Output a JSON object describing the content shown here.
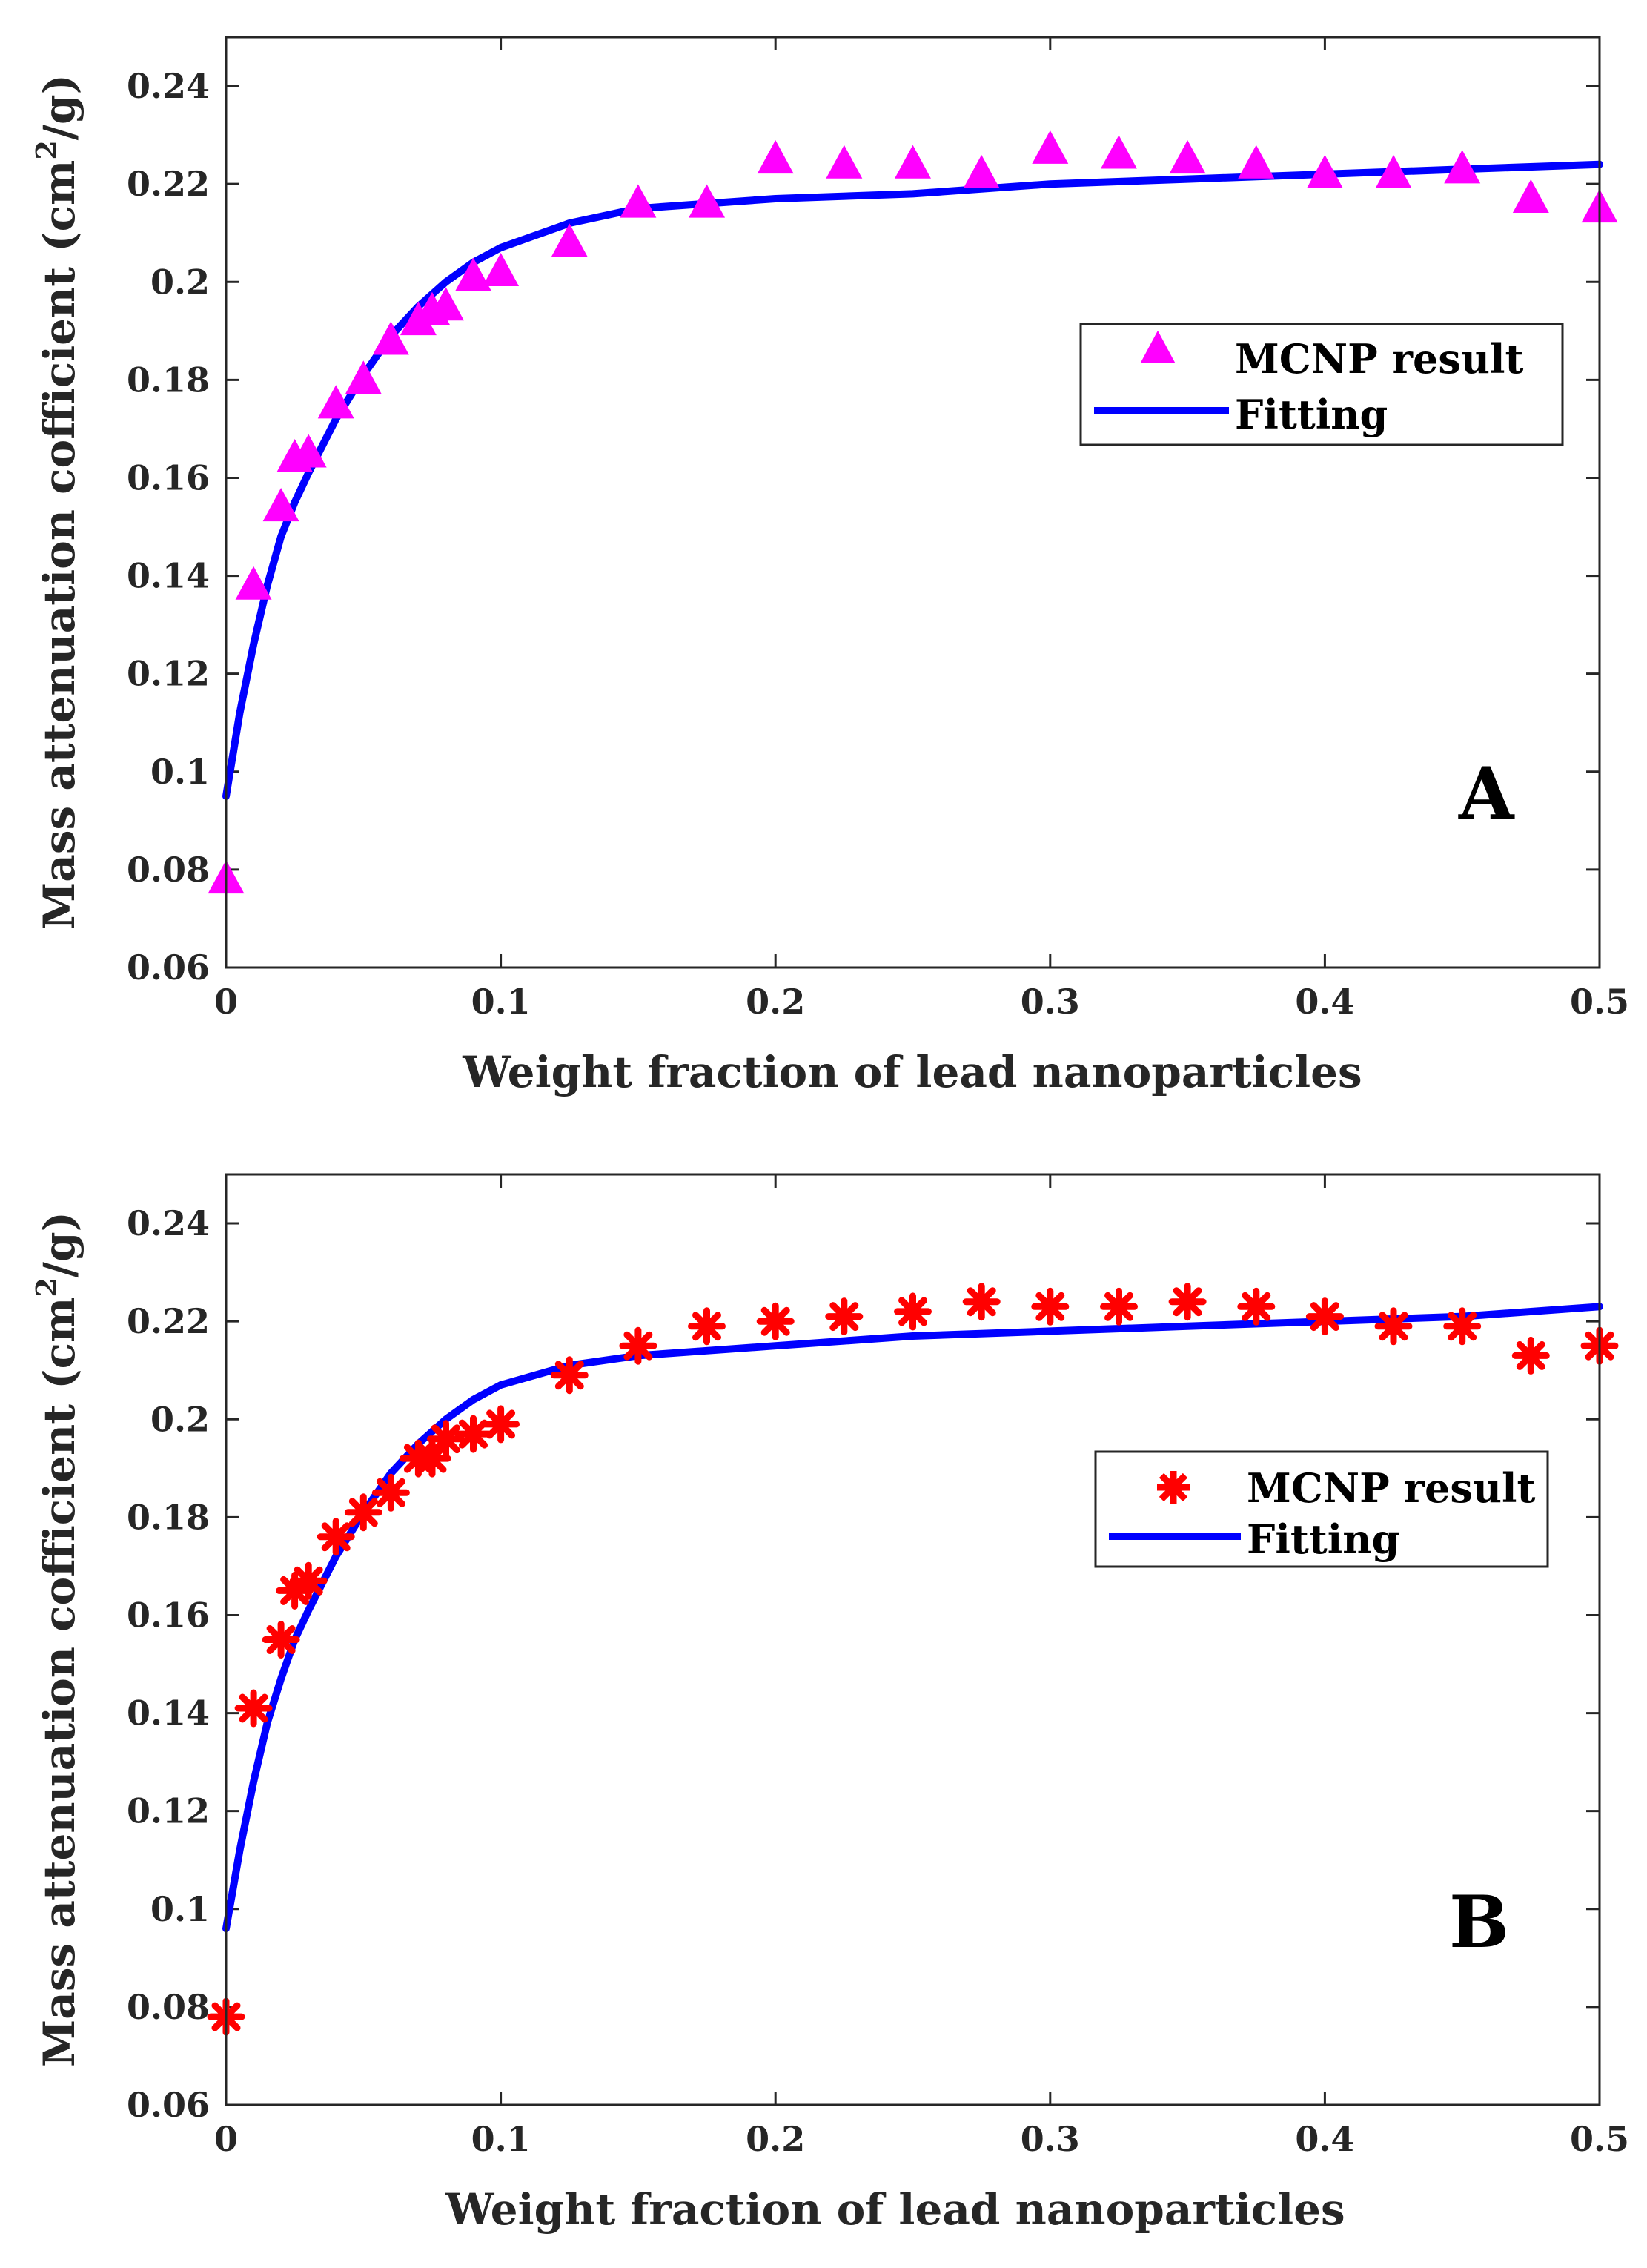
{
  "colors": {
    "fit": "#0000FF",
    "mcnp_a": "#FF00FF",
    "mcnp_b": "#FF0000",
    "axis": "#262626"
  },
  "chart_data": [
    {
      "type": "scatter",
      "panel_label": "A",
      "xlabel": "Weight fraction of lead nanoparticles",
      "ylabel_main": "Mass attenuation cofficient (cm",
      "ylabel_sup": "2",
      "ylabel_tail": "/g)",
      "xlim": [
        0,
        0.5
      ],
      "ylim": [
        0.06,
        0.25
      ],
      "x_ticks": [
        0,
        0.1,
        0.2,
        0.3,
        0.4,
        0.5
      ],
      "x_tick_labels": [
        "0",
        "0.1",
        "0.2",
        "0.3",
        "0.4",
        "0.5"
      ],
      "y_ticks": [
        0.06,
        0.08,
        0.1,
        0.12,
        0.14,
        0.16,
        0.18,
        0.2,
        0.22,
        0.24
      ],
      "y_tick_labels": [
        "0.06",
        "0.08",
        "0.1",
        "0.12",
        "0.14",
        "0.16",
        "0.18",
        "0.2",
        "0.22",
        "0.24"
      ],
      "legend_position": "upper-right",
      "series": [
        {
          "name": "MCNP result",
          "marker": "triangle",
          "x": [
            0,
            0.01,
            0.02,
            0.025,
            0.03,
            0.04,
            0.05,
            0.06,
            0.07,
            0.075,
            0.08,
            0.09,
            0.1,
            0.125,
            0.15,
            0.175,
            0.2,
            0.225,
            0.25,
            0.275,
            0.3,
            0.325,
            0.35,
            0.375,
            0.4,
            0.425,
            0.45,
            0.475,
            0.5
          ],
          "y": [
            0.078,
            0.138,
            0.154,
            0.164,
            0.165,
            0.175,
            0.18,
            0.188,
            0.192,
            0.194,
            0.195,
            0.201,
            0.202,
            0.208,
            0.216,
            0.216,
            0.225,
            0.224,
            0.224,
            0.222,
            0.227,
            0.226,
            0.225,
            0.224,
            0.222,
            0.222,
            0.223,
            0.217,
            0.215
          ]
        },
        {
          "name": "Fitting",
          "marker": "line",
          "x": [
            0,
            0.005,
            0.01,
            0.015,
            0.02,
            0.025,
            0.03,
            0.04,
            0.05,
            0.06,
            0.07,
            0.08,
            0.09,
            0.1,
            0.125,
            0.15,
            0.175,
            0.2,
            0.25,
            0.3,
            0.35,
            0.4,
            0.45,
            0.5
          ],
          "y": [
            0.095,
            0.112,
            0.126,
            0.138,
            0.148,
            0.155,
            0.161,
            0.172,
            0.181,
            0.189,
            0.195,
            0.2,
            0.204,
            0.207,
            0.212,
            0.215,
            0.216,
            0.217,
            0.218,
            0.22,
            0.221,
            0.222,
            0.223,
            0.224
          ]
        }
      ]
    },
    {
      "type": "scatter",
      "panel_label": "B",
      "xlabel": "Weight fraction of lead nanoparticles",
      "ylabel_main": "Mass attenuation cofficient (cm",
      "ylabel_sup": "2",
      "ylabel_tail": "/g)",
      "xlim": [
        0,
        0.5
      ],
      "ylim": [
        0.06,
        0.25
      ],
      "x_ticks": [
        0,
        0.1,
        0.2,
        0.3,
        0.4,
        0.5
      ],
      "x_tick_labels": [
        "0",
        "0.1",
        "0.2",
        "0.3",
        "0.4",
        "0.5"
      ],
      "y_ticks": [
        0.06,
        0.08,
        0.1,
        0.12,
        0.14,
        0.16,
        0.18,
        0.2,
        0.22,
        0.24
      ],
      "y_tick_labels": [
        "0.06",
        "0.08",
        "0.1",
        "0.12",
        "0.14",
        "0.16",
        "0.18",
        "0.2",
        "0.22",
        "0.24"
      ],
      "legend_position": "middle-right",
      "series": [
        {
          "name": "MCNP result",
          "marker": "asterisk",
          "x": [
            0,
            0.01,
            0.02,
            0.025,
            0.03,
            0.04,
            0.05,
            0.06,
            0.07,
            0.075,
            0.08,
            0.09,
            0.1,
            0.125,
            0.15,
            0.175,
            0.2,
            0.225,
            0.25,
            0.275,
            0.3,
            0.325,
            0.35,
            0.375,
            0.4,
            0.425,
            0.45,
            0.475,
            0.5
          ],
          "y": [
            0.078,
            0.141,
            0.155,
            0.165,
            0.167,
            0.176,
            0.181,
            0.185,
            0.192,
            0.192,
            0.196,
            0.197,
            0.199,
            0.209,
            0.215,
            0.219,
            0.22,
            0.221,
            0.222,
            0.224,
            0.223,
            0.223,
            0.224,
            0.223,
            0.221,
            0.219,
            0.219,
            0.213,
            0.215
          ]
        },
        {
          "name": "Fitting",
          "marker": "line",
          "x": [
            0,
            0.005,
            0.01,
            0.015,
            0.02,
            0.025,
            0.03,
            0.04,
            0.05,
            0.06,
            0.07,
            0.08,
            0.09,
            0.1,
            0.125,
            0.15,
            0.175,
            0.2,
            0.25,
            0.3,
            0.35,
            0.4,
            0.45,
            0.5
          ],
          "y": [
            0.096,
            0.112,
            0.126,
            0.138,
            0.147,
            0.155,
            0.161,
            0.172,
            0.181,
            0.189,
            0.195,
            0.2,
            0.204,
            0.207,
            0.211,
            0.213,
            0.214,
            0.215,
            0.217,
            0.218,
            0.219,
            0.22,
            0.221,
            0.223
          ]
        }
      ]
    }
  ]
}
